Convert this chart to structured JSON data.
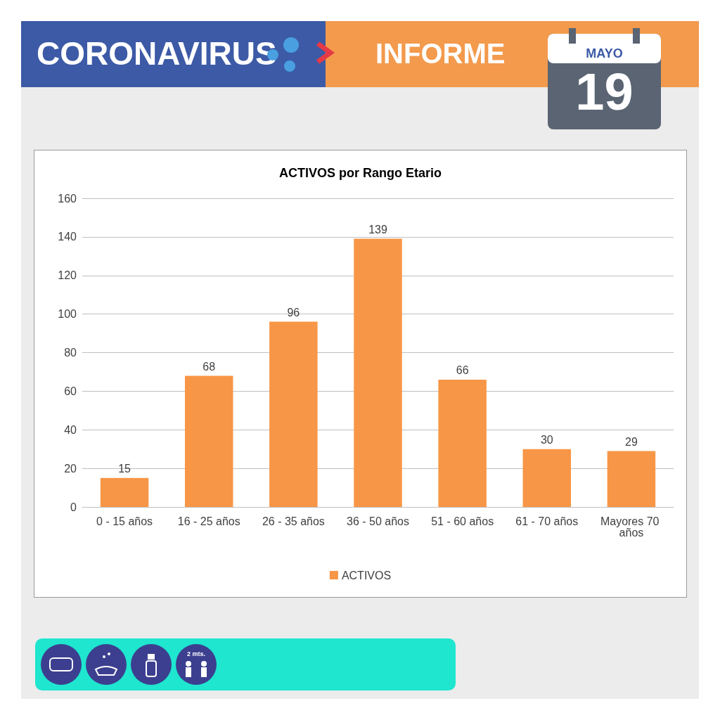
{
  "chart_data": {
    "type": "bar",
    "title": "ACTIVOS por Rango Etario",
    "categories": [
      "0 - 15 años",
      "16 - 25 años",
      "26 - 35 años",
      "36 - 50 años",
      "51 - 60 años",
      "61 - 70 años",
      "Mayores 70 años"
    ],
    "series": [
      {
        "name": "ACTIVOS",
        "color": "#f79646",
        "values": [
          15,
          68,
          96,
          139,
          66,
          30,
          29
        ]
      }
    ],
    "ylim": [
      0,
      160
    ],
    "yticks": [
      0,
      20,
      40,
      60,
      80,
      100,
      120,
      140,
      160
    ],
    "grid": "y",
    "legend": "bottom",
    "data_labels": true,
    "annotations": [
      "CORONAVIRUS",
      "INFORME",
      "MAYO",
      "19",
      "2 mts."
    ]
  }
}
